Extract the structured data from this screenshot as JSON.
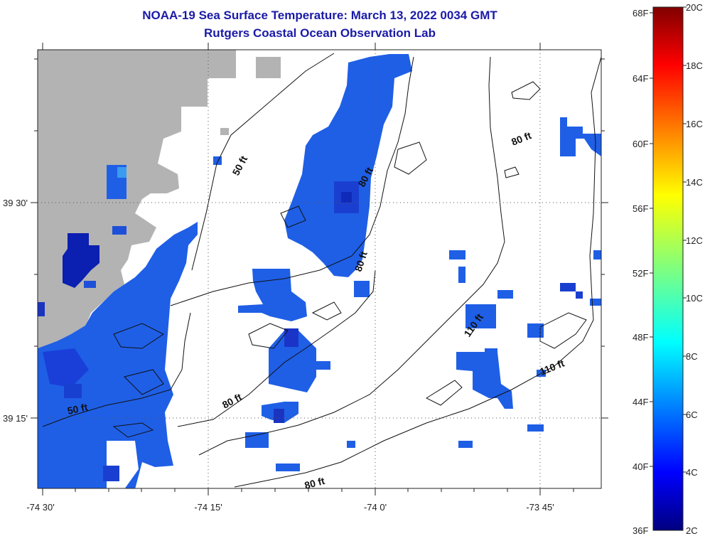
{
  "title": {
    "line1": "NOAA-19 Sea Surface Temperature:  March 13, 2022 0034 GMT",
    "line2": "Rutgers Coastal Ocean Observation Lab"
  },
  "axes": {
    "lon_labels": [
      "-74 30'",
      "-74 15'",
      "-74 0'",
      "-73 45'"
    ],
    "lat_labels": [
      "39 30'",
      "39 15'"
    ]
  },
  "contour_labels": [
    "50 ft",
    "80 ft",
    "80 ft",
    "80 ft",
    "110 ft",
    "110 ft",
    "50 ft",
    "80 ft",
    "80 ft"
  ],
  "colorbar": {
    "fahrenheit": [
      "68F",
      "64F",
      "60F",
      "56F",
      "52F",
      "48F",
      "44F",
      "40F",
      "36F"
    ],
    "celsius": [
      "20C",
      "18C",
      "16C",
      "14C",
      "12C",
      "10C",
      "8C",
      "6C",
      "4C",
      "2C"
    ]
  },
  "colors": {
    "land": "#b3b3b3",
    "title": "#1a1aa8",
    "sst_low": "#00007f",
    "sst_mid": "#1e64f0",
    "sst_high": "#800000"
  }
}
